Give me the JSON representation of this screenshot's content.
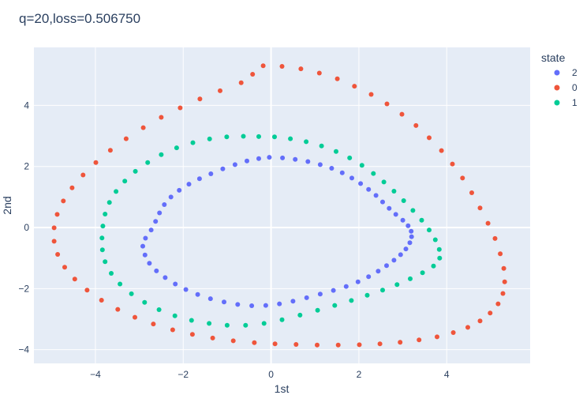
{
  "chart_data": {
    "type": "scatter",
    "title": "q=20,loss=0.506750",
    "xlabel": "1st",
    "ylabel": "2nd",
    "xlim": [
      -5.4,
      5.9
    ],
    "ylim": [
      -4.45,
      5.9
    ],
    "xticks": [
      -4,
      -2,
      0,
      2,
      4
    ],
    "xtick_labels": [
      "−4",
      "−2",
      "0",
      "2",
      "4"
    ],
    "yticks": [
      -4,
      -2,
      0,
      2,
      4
    ],
    "ytick_labels": [
      "−4",
      "−2",
      "0",
      "2",
      "4"
    ],
    "grid": true,
    "legend": {
      "title": "state",
      "placement": "top-right",
      "entries": [
        "2",
        "0",
        "1"
      ]
    },
    "series": [
      {
        "name": "2",
        "color": "#636efa",
        "points": [
          [
            -0.04,
            2.3
          ],
          [
            0.26,
            2.28
          ],
          [
            0.55,
            2.23
          ],
          [
            0.84,
            2.16
          ],
          [
            1.12,
            2.06
          ],
          [
            1.38,
            1.94
          ],
          [
            1.62,
            1.79
          ],
          [
            1.84,
            1.62
          ],
          [
            2.04,
            1.44
          ],
          [
            2.22,
            1.25
          ],
          [
            2.39,
            1.05
          ],
          [
            2.54,
            0.84
          ],
          [
            2.69,
            0.63
          ],
          [
            2.84,
            0.43
          ],
          [
            3.0,
            0.24
          ],
          [
            3.12,
            0.06
          ],
          [
            3.19,
            -0.12
          ],
          [
            3.2,
            -0.3
          ],
          [
            3.16,
            -0.5
          ],
          [
            3.07,
            -0.7
          ],
          [
            2.95,
            -0.89
          ],
          [
            2.8,
            -1.07
          ],
          [
            2.63,
            -1.25
          ],
          [
            2.44,
            -1.43
          ],
          [
            2.22,
            -1.61
          ],
          [
            1.98,
            -1.78
          ],
          [
            1.71,
            -1.93
          ],
          [
            1.42,
            -2.06
          ],
          [
            1.12,
            -2.18
          ],
          [
            0.81,
            -2.3
          ],
          [
            0.5,
            -2.41
          ],
          [
            0.19,
            -2.5
          ],
          [
            -0.12,
            -2.55
          ],
          [
            -0.44,
            -2.56
          ],
          [
            -0.76,
            -2.52
          ],
          [
            -1.07,
            -2.44
          ],
          [
            -1.38,
            -2.33
          ],
          [
            -1.67,
            -2.19
          ],
          [
            -1.94,
            -2.03
          ],
          [
            -2.18,
            -1.85
          ],
          [
            -2.41,
            -1.64
          ],
          [
            -2.61,
            -1.42
          ],
          [
            -2.77,
            -1.17
          ],
          [
            -2.87,
            -0.9
          ],
          [
            -2.92,
            -0.61
          ],
          [
            -2.86,
            -0.35
          ],
          [
            -2.73,
            -0.08
          ],
          [
            -2.63,
            0.2
          ],
          [
            -2.54,
            0.48
          ],
          [
            -2.43,
            0.75
          ],
          [
            -2.28,
            1.0
          ],
          [
            -2.09,
            1.22
          ],
          [
            -1.87,
            1.42
          ],
          [
            -1.63,
            1.6
          ],
          [
            -1.37,
            1.76
          ],
          [
            -1.1,
            1.92
          ],
          [
            -0.82,
            2.06
          ],
          [
            -0.55,
            2.18
          ],
          [
            -0.28,
            2.26
          ]
        ]
      },
      {
        "name": "0",
        "color": "#ef553b",
        "points": [
          [
            -0.18,
            5.3
          ],
          [
            0.25,
            5.28
          ],
          [
            0.68,
            5.2
          ],
          [
            1.1,
            5.06
          ],
          [
            1.51,
            4.87
          ],
          [
            1.9,
            4.63
          ],
          [
            2.28,
            4.36
          ],
          [
            2.64,
            4.05
          ],
          [
            2.98,
            3.71
          ],
          [
            3.3,
            3.34
          ],
          [
            3.6,
            2.94
          ],
          [
            3.88,
            2.52
          ],
          [
            4.13,
            2.08
          ],
          [
            4.36,
            1.62
          ],
          [
            4.57,
            1.14
          ],
          [
            4.76,
            0.64
          ],
          [
            4.94,
            0.14
          ],
          [
            5.1,
            -0.36
          ],
          [
            5.22,
            -0.86
          ],
          [
            5.3,
            -1.34
          ],
          [
            5.32,
            -1.78
          ],
          [
            5.28,
            -2.16
          ],
          [
            5.17,
            -2.5
          ],
          [
            4.99,
            -2.8
          ],
          [
            4.76,
            -3.06
          ],
          [
            4.48,
            -3.27
          ],
          [
            4.15,
            -3.44
          ],
          [
            3.78,
            -3.58
          ],
          [
            3.37,
            -3.68
          ],
          [
            2.94,
            -3.76
          ],
          [
            2.48,
            -3.81
          ],
          [
            2.01,
            -3.84
          ],
          [
            1.53,
            -3.85
          ],
          [
            1.05,
            -3.85
          ],
          [
            0.57,
            -3.83
          ],
          [
            0.09,
            -3.81
          ],
          [
            -0.38,
            -3.77
          ],
          [
            -0.86,
            -3.71
          ],
          [
            -1.33,
            -3.62
          ],
          [
            -1.79,
            -3.5
          ],
          [
            -2.24,
            -3.35
          ],
          [
            -2.68,
            -3.16
          ],
          [
            -3.1,
            -2.94
          ],
          [
            -3.49,
            -2.68
          ],
          [
            -3.86,
            -2.38
          ],
          [
            -4.19,
            -2.05
          ],
          [
            -4.47,
            -1.69
          ],
          [
            -4.7,
            -1.3
          ],
          [
            -4.86,
            -0.88
          ],
          [
            -4.94,
            -0.45
          ],
          [
            -4.94,
            -0.01
          ],
          [
            -4.87,
            0.43
          ],
          [
            -4.73,
            0.87
          ],
          [
            -4.53,
            1.3
          ],
          [
            -4.28,
            1.72
          ],
          [
            -3.99,
            2.13
          ],
          [
            -3.66,
            2.53
          ],
          [
            -3.3,
            2.91
          ],
          [
            -2.91,
            3.27
          ],
          [
            -2.5,
            3.61
          ],
          [
            -2.07,
            3.92
          ],
          [
            -1.62,
            4.21
          ],
          [
            -1.16,
            4.48
          ],
          [
            -0.68,
            4.74
          ],
          [
            -0.42,
            5.02
          ]
        ]
      },
      {
        "name": "1",
        "color": "#00cc96",
        "points": [
          [
            -0.28,
            2.98
          ],
          [
            0.08,
            2.97
          ],
          [
            0.44,
            2.91
          ],
          [
            0.8,
            2.81
          ],
          [
            1.15,
            2.67
          ],
          [
            1.48,
            2.49
          ],
          [
            1.79,
            2.28
          ],
          [
            2.07,
            2.04
          ],
          [
            2.33,
            1.77
          ],
          [
            2.57,
            1.49
          ],
          [
            2.8,
            1.19
          ],
          [
            3.02,
            0.88
          ],
          [
            3.23,
            0.56
          ],
          [
            3.43,
            0.24
          ],
          [
            3.6,
            -0.08
          ],
          [
            3.74,
            -0.4
          ],
          [
            3.83,
            -0.72
          ],
          [
            3.84,
            -1.0
          ],
          [
            3.7,
            -1.26
          ],
          [
            3.45,
            -1.48
          ],
          [
            3.17,
            -1.68
          ],
          [
            2.87,
            -1.87
          ],
          [
            2.54,
            -2.05
          ],
          [
            2.19,
            -2.22
          ],
          [
            1.83,
            -2.39
          ],
          [
            1.45,
            -2.55
          ],
          [
            1.06,
            -2.71
          ],
          [
            0.66,
            -2.87
          ],
          [
            0.25,
            -3.02
          ],
          [
            -0.16,
            -3.14
          ],
          [
            -0.58,
            -3.2
          ],
          [
            -1.0,
            -3.2
          ],
          [
            -1.41,
            -3.14
          ],
          [
            -1.81,
            -3.04
          ],
          [
            -2.19,
            -2.89
          ],
          [
            -2.55,
            -2.69
          ],
          [
            -2.88,
            -2.45
          ],
          [
            -3.18,
            -2.17
          ],
          [
            -3.44,
            -1.85
          ],
          [
            -3.64,
            -1.5
          ],
          [
            -3.78,
            -1.12
          ],
          [
            -3.84,
            -0.73
          ],
          [
            -3.85,
            -0.34
          ],
          [
            -3.83,
            0.05
          ],
          [
            -3.78,
            0.44
          ],
          [
            -3.68,
            0.82
          ],
          [
            -3.53,
            1.18
          ],
          [
            -3.33,
            1.52
          ],
          [
            -3.09,
            1.84
          ],
          [
            -2.81,
            2.13
          ],
          [
            -2.5,
            2.39
          ],
          [
            -2.15,
            2.61
          ],
          [
            -1.78,
            2.78
          ],
          [
            -1.4,
            2.9
          ],
          [
            -1.01,
            2.97
          ],
          [
            -0.63,
            2.99
          ]
        ]
      }
    ]
  }
}
